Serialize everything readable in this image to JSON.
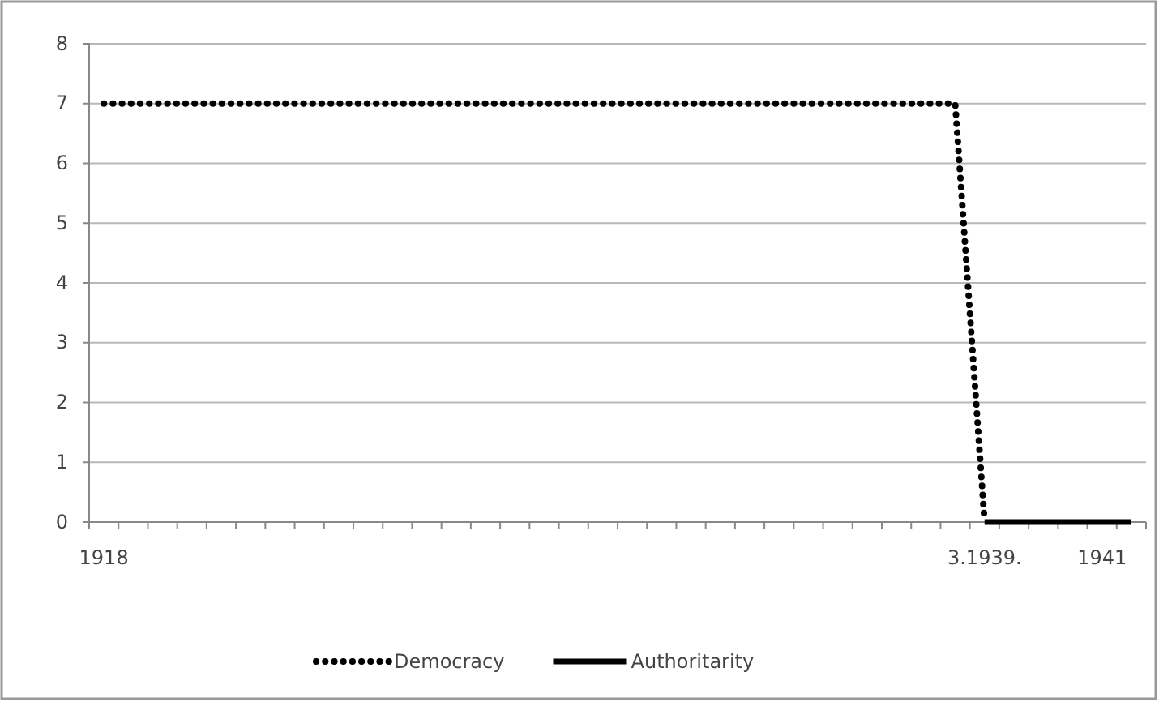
{
  "chart_data": {
    "type": "line",
    "categories": [
      "1918",
      null,
      null,
      null,
      null,
      null,
      null,
      null,
      null,
      null,
      null,
      null,
      null,
      null,
      null,
      null,
      null,
      null,
      null,
      null,
      null,
      null,
      null,
      null,
      null,
      null,
      null,
      null,
      null,
      null,
      "3.1939.",
      null,
      null,
      null,
      "1941",
      null
    ],
    "series": [
      {
        "name": "Democracy",
        "color": "#000000",
        "line_style": "dotted",
        "values": [
          7,
          7,
          7,
          7,
          7,
          7,
          7,
          7,
          7,
          7,
          7,
          7,
          7,
          7,
          7,
          7,
          7,
          7,
          7,
          7,
          7,
          7,
          7,
          7,
          7,
          7,
          7,
          7,
          7,
          7,
          0,
          null,
          null,
          null,
          null,
          null
        ]
      },
      {
        "name": "Authoritarity",
        "color": "#000000",
        "line_style": "solid",
        "values": [
          null,
          null,
          null,
          null,
          null,
          null,
          null,
          null,
          null,
          null,
          null,
          null,
          null,
          null,
          null,
          null,
          null,
          null,
          null,
          null,
          null,
          null,
          null,
          null,
          null,
          null,
          null,
          null,
          null,
          null,
          0,
          0,
          0,
          0,
          0,
          0
        ]
      }
    ],
    "ylim": [
      0,
      8
    ],
    "yticks": [
      0,
      1,
      2,
      3,
      4,
      5,
      6,
      7,
      8
    ],
    "grid": "y",
    "legend": "bottom",
    "marker": "none"
  }
}
